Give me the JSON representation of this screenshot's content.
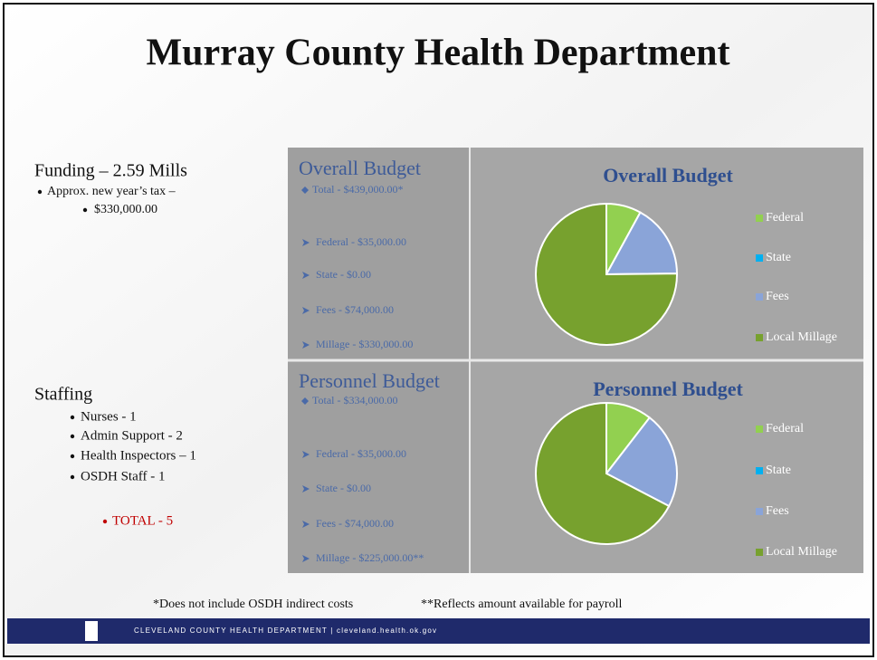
{
  "title": "Murray County Health Department",
  "funding": {
    "heading": "Funding – 2.59 Mills",
    "items": [
      "Approx. new year’s tax –",
      "$330,000.00"
    ]
  },
  "staffing": {
    "heading": "Staffing",
    "items": [
      "Nurses - 1",
      "Admin Support - 2",
      "Health Inspectors – 1",
      "OSDH Staff - 1"
    ],
    "total": "TOTAL - 5"
  },
  "overall_panel": {
    "heading": "Overall Budget",
    "total": "Total  - $439,000.00*",
    "items": [
      "Federal - $35,000.00",
      "State - $0.00",
      "Fees - $74,000.00",
      "Millage - $330,000.00"
    ]
  },
  "personnel_panel": {
    "heading": "Personnel Budget",
    "total": "Total  - $334,000.00",
    "items": [
      "Federal - $35,000.00",
      "State - $0.00",
      "Fees - $74,000.00",
      "Millage - $225,000.00**"
    ]
  },
  "footnotes": [
    "*Does not include OSDH indirect costs",
    "**Reflects amount available for payroll"
  ],
  "footer": "CLEVELAND COUNTY HEALTH DEPARTMENT  |  cleveland.health.ok.gov",
  "chart_data": [
    {
      "type": "pie",
      "title": "Overall Budget",
      "categories": [
        "Federal",
        "State",
        "Fees",
        "Local Millage"
      ],
      "values": [
        35000,
        0,
        74000,
        330000
      ],
      "colors": [
        "#92d050",
        "#00b0f0",
        "#8aa4d8",
        "#77a12e"
      ],
      "legend": "right"
    },
    {
      "type": "pie",
      "title": "Personnel Budget",
      "categories": [
        "Federal",
        "State",
        "Fees",
        "Local Millage"
      ],
      "values": [
        35000,
        0,
        74000,
        225000
      ],
      "colors": [
        "#92d050",
        "#00b0f0",
        "#8aa4d8",
        "#77a12e"
      ],
      "legend": "right"
    }
  ]
}
